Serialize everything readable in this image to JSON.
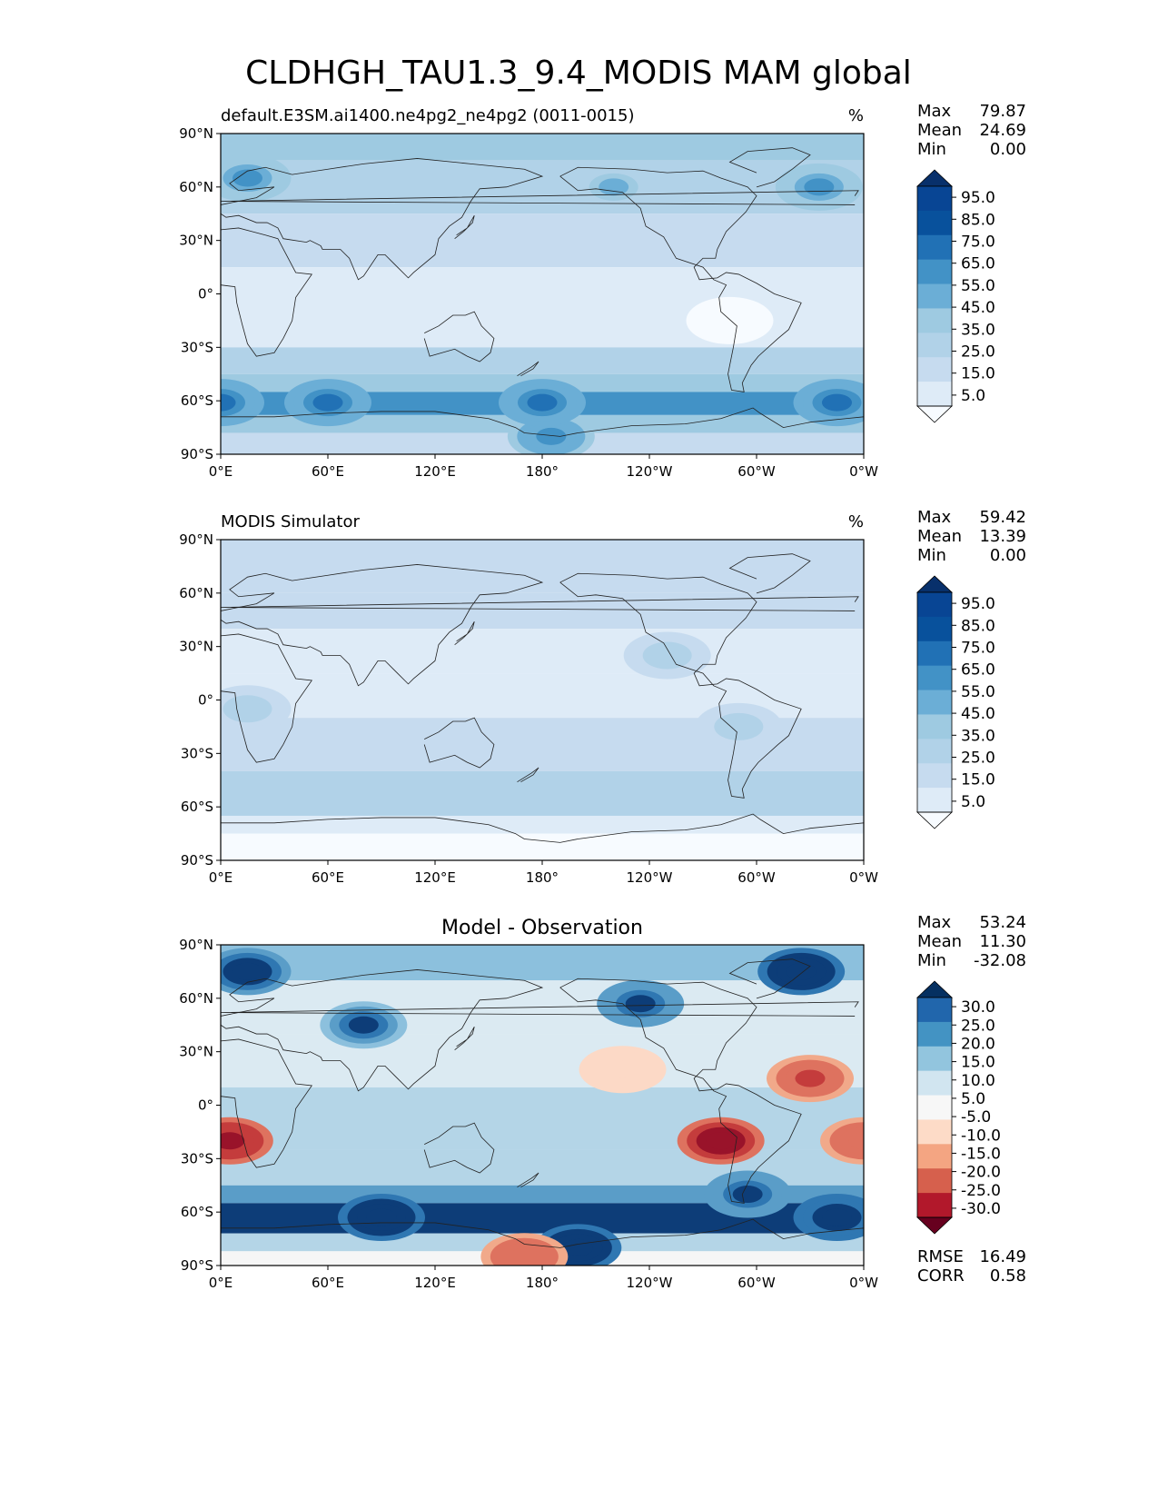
{
  "figure_title": "CLDHGH_TAU1.3_9.4_MODIS MAM global",
  "chart_data": [
    {
      "type": "heatmap",
      "title": "default.E3SM.ai1400.ne4pg2_ne4pg2 (0011-0015)",
      "units": "%",
      "stats": [
        [
          "Max",
          "79.87"
        ],
        [
          "Mean",
          "24.69"
        ],
        [
          "Min",
          "0.00"
        ]
      ],
      "colorbar_labels": [
        "95.0",
        "85.0",
        "75.0",
        "65.0",
        "55.0",
        "45.0",
        "35.0",
        "25.0",
        "15.0",
        "5.0"
      ],
      "lat_ticks": [
        "90°N",
        "60°N",
        "30°N",
        "0°",
        "30°S",
        "60°S",
        "90°S"
      ],
      "lon_ticks": [
        "0°E",
        "60°E",
        "120°E",
        "180°",
        "120°W",
        "60°W",
        "0°W"
      ],
      "lat_bands": [
        {
          "lat": [
            90,
            75
          ],
          "value": 35
        },
        {
          "lat": [
            75,
            45
          ],
          "value": 25
        },
        {
          "lat": [
            45,
            15
          ],
          "value": 15
        },
        {
          "lat": [
            15,
            -30
          ],
          "value": 10
        },
        {
          "lat": [
            -30,
            -45
          ],
          "value": 25
        },
        {
          "lat": [
            -45,
            -55
          ],
          "value": 40
        },
        {
          "lat": [
            -55,
            -68
          ],
          "value": 55
        },
        {
          "lat": [
            -68,
            -78
          ],
          "value": 40
        },
        {
          "lat": [
            -78,
            -90
          ],
          "value": 20
        }
      ],
      "blobs": [
        {
          "lon": 15,
          "lat": 65,
          "value": 55
        },
        {
          "lon": 220,
          "lat": 60,
          "value": 45
        },
        {
          "lon": 335,
          "lat": 60,
          "value": 55
        },
        {
          "lon": 185,
          "lat": -80,
          "value": 60
        },
        {
          "lon": 0,
          "lat": -61,
          "value": 70
        },
        {
          "lon": 60,
          "lat": -61,
          "value": 70
        },
        {
          "lon": 180,
          "lat": -61,
          "value": 70
        },
        {
          "lon": 345,
          "lat": -61,
          "value": 70
        },
        {
          "lon": 285,
          "lat": -15,
          "value": 3
        }
      ]
    },
    {
      "type": "heatmap",
      "title": "MODIS Simulator",
      "units": "%",
      "stats": [
        [
          "Max",
          "59.42"
        ],
        [
          "Mean",
          "13.39"
        ],
        [
          "Min",
          "0.00"
        ]
      ],
      "colorbar_labels": [
        "95.0",
        "85.0",
        "75.0",
        "65.0",
        "55.0",
        "45.0",
        "35.0",
        "25.0",
        "15.0",
        "5.0"
      ],
      "lat_ticks": [
        "90°N",
        "60°N",
        "30°N",
        "0°",
        "30°S",
        "60°S",
        "90°S"
      ],
      "lon_ticks": [
        "0°E",
        "60°E",
        "120°E",
        "180°",
        "120°W",
        "60°W",
        "0°W"
      ],
      "lat_bands": [
        {
          "lat": [
            90,
            60
          ],
          "value": 15
        },
        {
          "lat": [
            60,
            40
          ],
          "value": 22
        },
        {
          "lat": [
            40,
            15
          ],
          "value": 10
        },
        {
          "lat": [
            15,
            -10
          ],
          "value": 8
        },
        {
          "lat": [
            -10,
            -40
          ],
          "value": 15
        },
        {
          "lat": [
            -40,
            -65
          ],
          "value": 25
        },
        {
          "lat": [
            -65,
            -75
          ],
          "value": 12
        },
        {
          "lat": [
            -75,
            -90
          ],
          "value": 3
        }
      ],
      "blobs": [
        {
          "lon": 250,
          "lat": 25,
          "value": 30
        },
        {
          "lon": 290,
          "lat": -15,
          "value": 30
        },
        {
          "lon": 15,
          "lat": -5,
          "value": 30
        }
      ]
    },
    {
      "type": "heatmap",
      "title": "Model - Observation",
      "units": "",
      "stats": [
        [
          "Max",
          "53.24"
        ],
        [
          "Mean",
          "11.30"
        ],
        [
          "Min",
          "-32.08"
        ]
      ],
      "extra_stats": [
        [
          "RMSE",
          "16.49"
        ],
        [
          "CORR",
          "0.58"
        ]
      ],
      "colorbar_labels": [
        "30.0",
        "25.0",
        "20.0",
        "15.0",
        "10.0",
        "5.0",
        "-5.0",
        "-10.0",
        "-15.0",
        "-20.0",
        "-25.0",
        "-30.0"
      ],
      "lat_ticks": [
        "90°N",
        "60°N",
        "30°N",
        "0°",
        "30°S",
        "60°S",
        "90°S"
      ],
      "lon_ticks": [
        "0°E",
        "60°E",
        "120°E",
        "180°",
        "120°W",
        "60°W",
        "0°W"
      ],
      "lat_bands": [
        {
          "lat": [
            90,
            70
          ],
          "value": 15
        },
        {
          "lat": [
            70,
            40
          ],
          "value": 8
        },
        {
          "lat": [
            40,
            10
          ],
          "value": 6
        },
        {
          "lat": [
            10,
            -25
          ],
          "value": 10
        },
        {
          "lat": [
            -25,
            -45
          ],
          "value": 12
        },
        {
          "lat": [
            -45,
            -55
          ],
          "value": 22
        },
        {
          "lat": [
            -55,
            -72
          ],
          "value": 32
        },
        {
          "lat": [
            -72,
            -82
          ],
          "value": 12
        },
        {
          "lat": [
            -82,
            -90
          ],
          "value": 0
        }
      ],
      "blobs": [
        {
          "lon": 15,
          "lat": 75,
          "value": 35
        },
        {
          "lon": 80,
          "lat": 45,
          "value": 30
        },
        {
          "lon": 235,
          "lat": 57,
          "value": 32
        },
        {
          "lon": 325,
          "lat": 75,
          "value": 40
        },
        {
          "lon": 200,
          "lat": -80,
          "value": 40
        },
        {
          "lon": 90,
          "lat": -63,
          "value": 40
        },
        {
          "lon": 345,
          "lat": -63,
          "value": 38
        },
        {
          "lon": 295,
          "lat": -50,
          "value": 32
        },
        {
          "lon": 5,
          "lat": -20,
          "value": -28
        },
        {
          "lon": 360,
          "lat": -20,
          "value": -20
        },
        {
          "lon": 280,
          "lat": -20,
          "value": -30
        },
        {
          "lon": 330,
          "lat": 15,
          "value": -22
        },
        {
          "lon": 225,
          "lat": 20,
          "value": -10
        },
        {
          "lon": 170,
          "lat": -85,
          "value": -20
        }
      ]
    }
  ]
}
